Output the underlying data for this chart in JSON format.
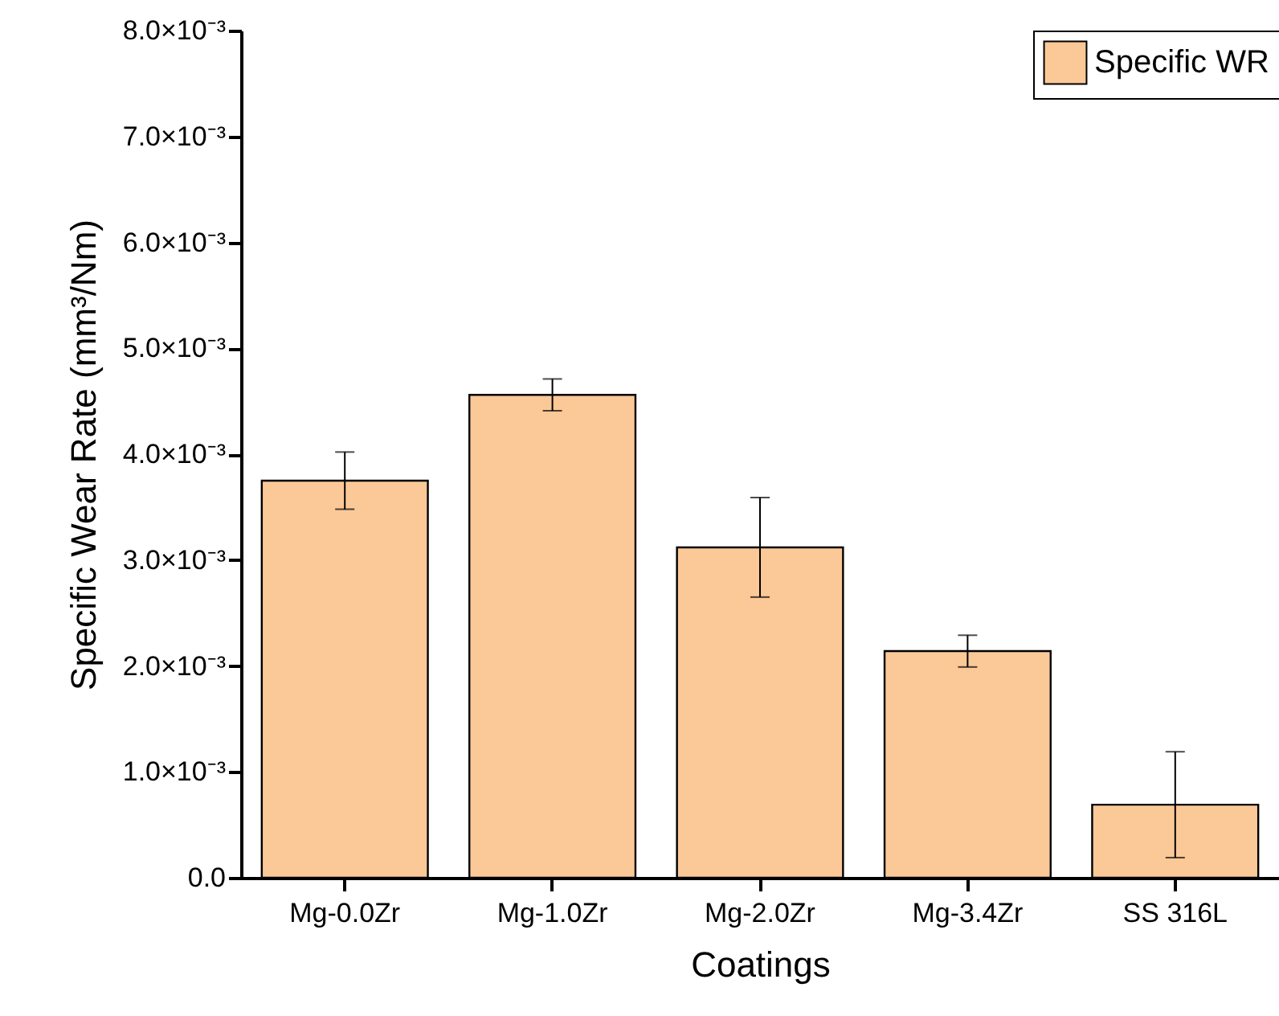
{
  "chart_data": {
    "type": "bar",
    "xlabel": "Coatings",
    "ylabel": "Specific Wear Rate (mm³/Nm)",
    "categories": [
      "Mg-0.0Zr",
      "Mg-1.0Zr",
      "Mg-2.0Zr",
      "Mg-3.4Zr",
      "SS 316L"
    ],
    "series": [
      {
        "name": "Specific WR",
        "color": "#fbc898",
        "values": [
          0.00375,
          0.00456,
          0.00312,
          0.00214,
          0.00069
        ],
        "errors": [
          0.00027,
          0.00015,
          0.00047,
          0.00015,
          0.0005
        ]
      }
    ],
    "ylim": [
      0,
      0.008
    ],
    "yticks": [
      {
        "value": 0,
        "label": "0.0"
      },
      {
        "value": 0.001,
        "label": "1.0×10⁻³"
      },
      {
        "value": 0.002,
        "label": "2.0×10⁻³"
      },
      {
        "value": 0.003,
        "label": "3.0×10⁻³"
      },
      {
        "value": 0.004,
        "label": "4.0×10⁻³"
      },
      {
        "value": 0.005,
        "label": "5.0×10⁻³"
      },
      {
        "value": 0.006,
        "label": "6.0×10⁻³"
      },
      {
        "value": 0.007,
        "label": "7.0×10⁻³"
      },
      {
        "value": 0.008,
        "label": "8.0×10⁻³"
      }
    ],
    "legend": "top right",
    "grid": false
  }
}
